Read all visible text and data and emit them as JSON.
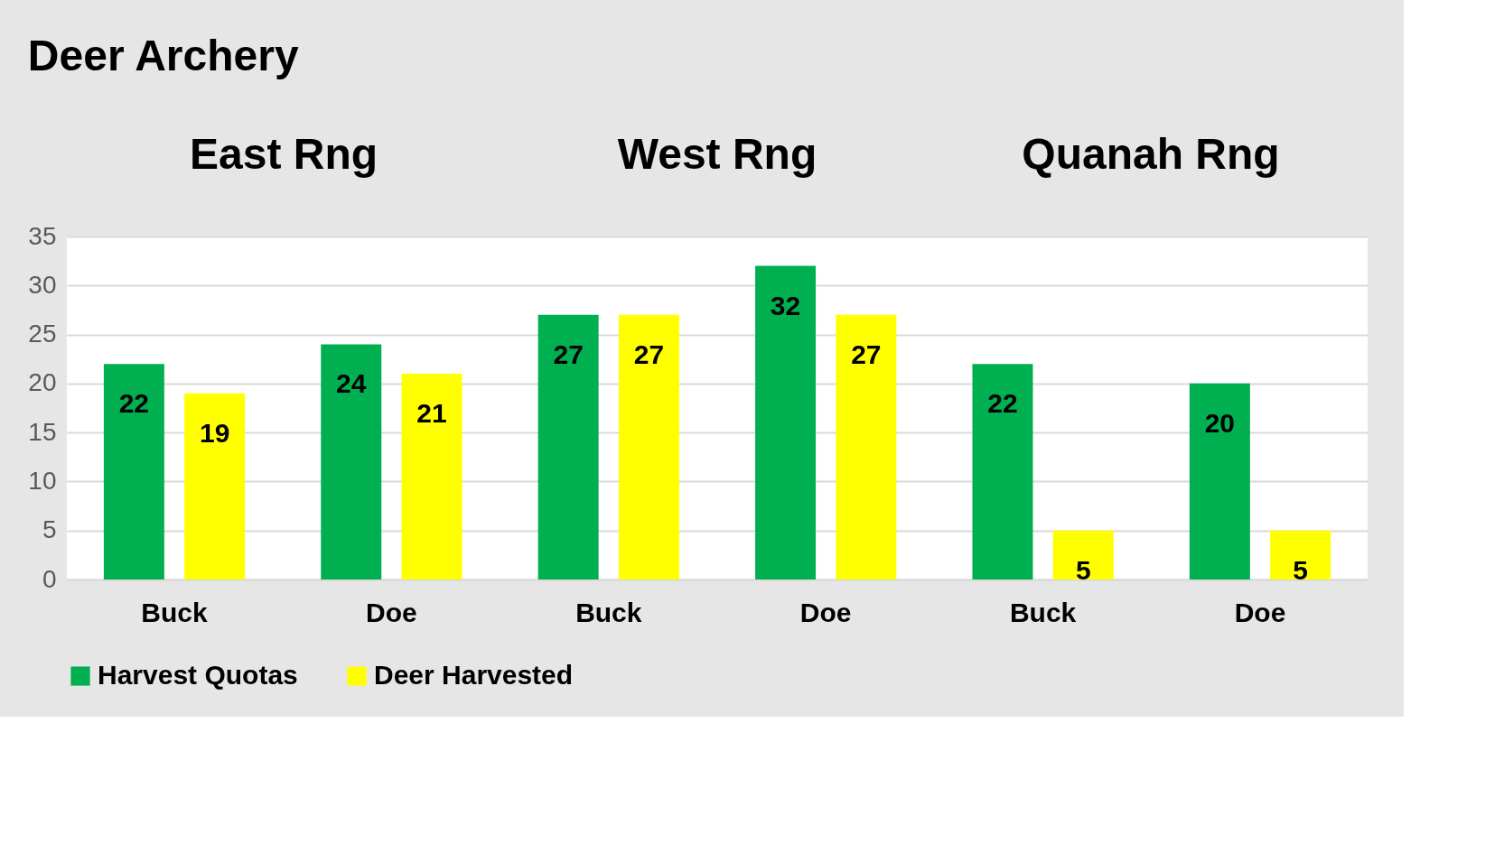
{
  "chart_data": {
    "type": "bar",
    "title": "Deer Archery",
    "annotations": [
      "East Rng",
      "West Rng",
      "Quanah Rng"
    ],
    "categories": [
      "Buck",
      "Doe",
      "Buck",
      "Doe",
      "Buck",
      "Doe"
    ],
    "series": [
      {
        "name": "Harvest Quotas",
        "color": "#00b050",
        "values": [
          22,
          24,
          27,
          32,
          22,
          20
        ]
      },
      {
        "name": "Deer Harvested",
        "color": "#ffff00",
        "values": [
          19,
          21,
          27,
          27,
          5,
          5
        ]
      }
    ],
    "ylim": [
      0,
      35
    ],
    "yticks": [
      0,
      5,
      10,
      15,
      20,
      25,
      30,
      35
    ],
    "grid": "y",
    "legend": "bottom",
    "data_labels": true
  }
}
